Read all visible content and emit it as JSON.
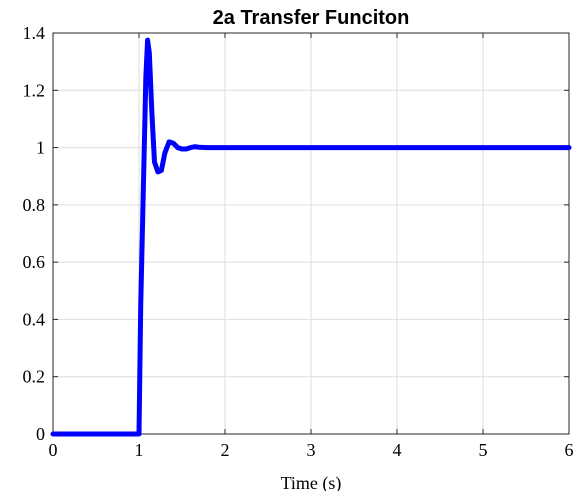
{
  "chart_data": {
    "type": "line",
    "title": "2a Transfer Funciton",
    "xlabel": "Time (s)",
    "ylabel": "",
    "xlim": [
      0,
      6
    ],
    "ylim": [
      0,
      1.4
    ],
    "grid": true,
    "x_ticks": [
      0,
      1,
      2,
      3,
      4,
      5,
      6
    ],
    "x_tick_labels": [
      "0",
      "1",
      "2",
      "3",
      "4",
      "5",
      "6"
    ],
    "y_ticks": [
      0,
      0.2,
      0.4,
      0.6,
      0.8,
      1,
      1.2,
      1.4
    ],
    "y_tick_labels": [
      "0",
      "0.2",
      "0.4",
      "0.6",
      "0.8",
      "1",
      "1.2",
      "1.4"
    ],
    "series": [
      {
        "color": "#0000ff",
        "x": [
          0,
          1.0,
          1.02,
          1.05,
          1.08,
          1.1,
          1.12,
          1.15,
          1.18,
          1.22,
          1.26,
          1.3,
          1.35,
          1.4,
          1.45,
          1.5,
          1.55,
          1.6,
          1.65,
          1.7,
          1.8,
          2.0,
          3.0,
          4.0,
          5.0,
          6.0
        ],
        "y": [
          0,
          0,
          0.45,
          0.85,
          1.25,
          1.375,
          1.33,
          1.12,
          0.95,
          0.915,
          0.92,
          0.98,
          1.02,
          1.015,
          1.0,
          0.995,
          0.995,
          1.0,
          1.003,
          1.001,
          1.0,
          1.0,
          1.0,
          1.0,
          1.0,
          1.0
        ]
      }
    ]
  }
}
